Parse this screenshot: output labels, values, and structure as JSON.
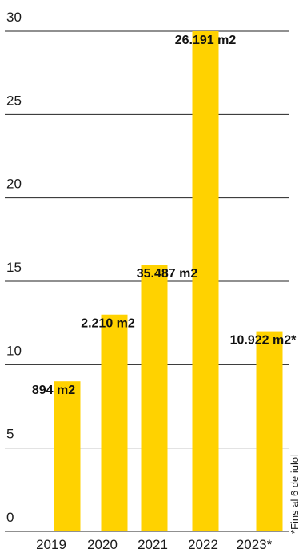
{
  "chart_data": {
    "type": "bar",
    "categories": [
      "2019",
      "2020",
      "2021",
      "2022",
      "2023*"
    ],
    "values": [
      9,
      13,
      16,
      30,
      12
    ],
    "data_labels": [
      "894 m2",
      "2.210 m2",
      "35.487 m2",
      "26.191 m2",
      "10.922 m2*"
    ],
    "y_ticks": [
      "0",
      "5",
      "10",
      "15",
      "20",
      "25",
      "30"
    ],
    "ylim": [
      0,
      30
    ],
    "grid": true,
    "bar_color": "#FFD200",
    "footnote": "*Fins al 6 de iulol"
  }
}
